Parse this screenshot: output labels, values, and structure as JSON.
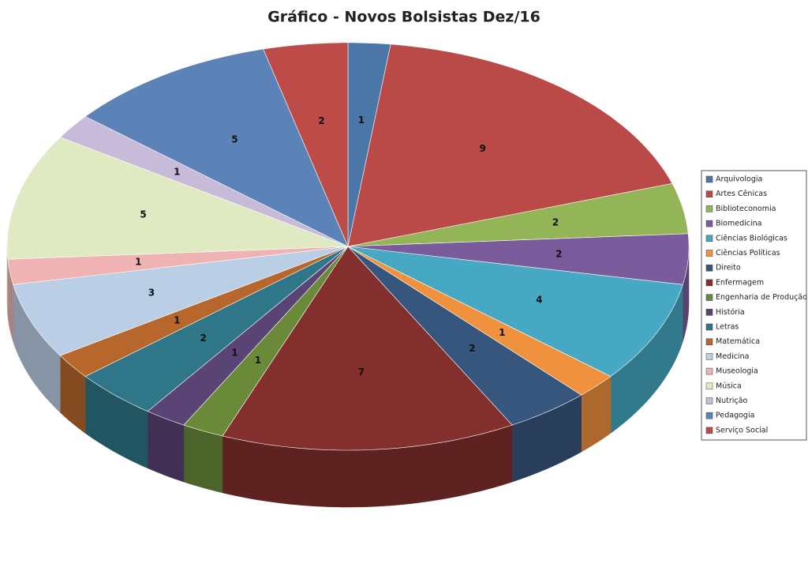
{
  "chart_data": {
    "type": "pie",
    "title": "Gráfico - Novos Bolsistas Dez/16",
    "categories": [
      "Arquivologia",
      "Artes Cênicas",
      "Biblioteconomia",
      "Biomedicina",
      "Ciências Biológicas",
      "Ciências Políticas",
      "Direito",
      "Enfermagem",
      "Engenharia de Produção",
      "História",
      "Letras",
      "Matemática",
      "Medicina",
      "Museologia",
      "Música",
      "Nutrição",
      "Pedagogia",
      "Serviço Social"
    ],
    "values": [
      1,
      9,
      2,
      2,
      4,
      1,
      2,
      7,
      1,
      1,
      2,
      1,
      3,
      1,
      5,
      1,
      5,
      2
    ],
    "colors": [
      "#4a76a8",
      "#b94a48",
      "#93b457",
      "#7a5b9c",
      "#46a8c2",
      "#f0913e",
      "#37567d",
      "#832f2e",
      "#6a8a3a",
      "#5a4375",
      "#2f7688",
      "#b8672c",
      "#bacee6",
      "#f0b3b3",
      "#dfeac3",
      "#c8bad9",
      "#5b83b8",
      "#bd4b48"
    ],
    "legend": "right"
  }
}
